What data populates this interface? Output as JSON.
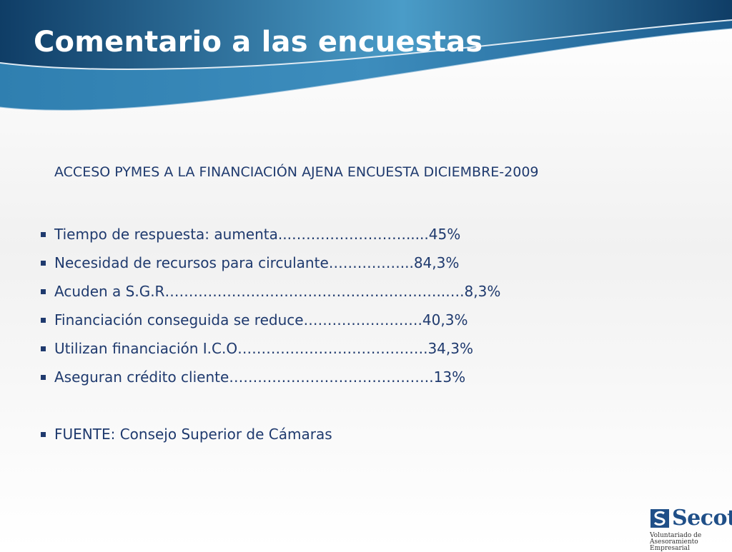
{
  "slide": {
    "title": "Comentario a las encuestas",
    "heading": "ACCESO PYMES A LA FINANCIACIÓN AJENA ENCUESTA DICIEMBRE-2009",
    "items": [
      "Tiempo de respuesta: aumenta...…………………….....45%",
      "Necesidad de recursos para circulante……………...84,3%",
      "Acuden a S.G.R…………………………………………………..….8,3%",
      "Financiación conseguida se reduce…………………….40,3%",
      "Utilizan financiación I.C.O………………………………….34,3%",
      "Aseguran crédito cliente…………………………………….13%",
      "FUENTE: Consejo Superior de Cámaras"
    ]
  },
  "logo": {
    "name": "Secot",
    "subtitle_line1": "Voluntariado de",
    "subtitle_line2": "Asesoramiento Empresarial"
  },
  "colors": {
    "header_dark": "#0f3d66",
    "header_light": "#4a9cc8",
    "text": "#1f3a6e"
  }
}
